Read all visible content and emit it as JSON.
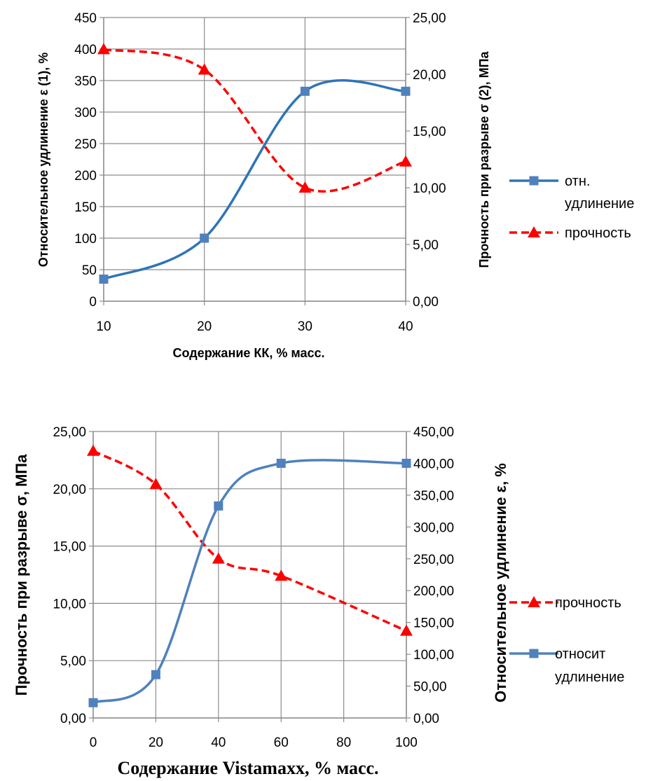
{
  "chart_data": [
    {
      "type": "line",
      "x": [
        10,
        20,
        30,
        40
      ],
      "xlabel": "Содержание КК, % масс.",
      "ylabel": "Относительное удлинение ε (1), %",
      "y2label": "Прочность при разрыве σ (2), МПа",
      "xlim": [
        10,
        40
      ],
      "ylim": [
        0,
        450
      ],
      "y2lim": [
        0,
        25
      ],
      "x_ticks": [
        "10",
        "20",
        "30",
        "40"
      ],
      "y_ticks": [
        "0",
        "50",
        "100",
        "150",
        "200",
        "250",
        "300",
        "350",
        "400",
        "450"
      ],
      "y2_ticks": [
        "0,00",
        "5,00",
        "10,00",
        "15,00",
        "20,00",
        "25,00"
      ],
      "grid": true,
      "legend_position": "right",
      "series": [
        {
          "name": "отн. удлинение",
          "axis": "left",
          "values": [
            35,
            100,
            333,
            333
          ],
          "color": "#2E75B6",
          "marker_color": "#4F81BD",
          "marker": "square",
          "dash": "solid"
        },
        {
          "name": "прочность",
          "axis": "right",
          "values": [
            22.2,
            20.4,
            10.0,
            12.3
          ],
          "color": "#FF0000",
          "marker_color": "#FF0000",
          "marker": "triangle",
          "dash": "dashed"
        }
      ],
      "legend": [
        {
          "lines": [
            "отн.",
            "удлинение"
          ],
          "series": 0
        },
        {
          "lines": [
            "прочность"
          ],
          "series": 1
        }
      ]
    },
    {
      "type": "line",
      "x": [
        "0",
        "20",
        "40",
        "60",
        "100"
      ],
      "xlabel": "Содержание Vistamaxx, % масс.",
      "ylabel": "Прочность при разрыве σ, МПа",
      "y2label": "Относительное удлинение ε, %",
      "ylim": [
        0,
        25
      ],
      "y2lim": [
        0,
        450
      ],
      "x_ticks": [
        "0",
        "20",
        "40",
        "60",
        "80",
        "100"
      ],
      "y_ticks": [
        "0,00",
        "5,00",
        "10,00",
        "15,00",
        "20,00",
        "25,00"
      ],
      "y2_ticks": [
        "0,00",
        "50,00",
        "100,00",
        "150,00",
        "200,00",
        "250,00",
        "300,00",
        "350,00",
        "400,00",
        "450,00"
      ],
      "grid": true,
      "legend_position": "right",
      "series": [
        {
          "name": "прочность",
          "axis": "left",
          "values": [
            23.3,
            20.4,
            13.9,
            12.4,
            7.6
          ],
          "color": "#FF0000",
          "marker_color": "#FF0000",
          "marker": "triangle",
          "dash": "dashed"
        },
        {
          "name": "относит удлинение",
          "axis": "right",
          "values": [
            24,
            68,
            333,
            400,
            400
          ],
          "color": "#4F81BD",
          "marker_color": "#4F81BD",
          "marker": "square",
          "dash": "solid"
        }
      ],
      "legend": [
        {
          "lines": [
            "прочность"
          ],
          "series": 0
        },
        {
          "lines": [
            "относит",
            "удлинение"
          ],
          "series": 1
        }
      ]
    }
  ]
}
